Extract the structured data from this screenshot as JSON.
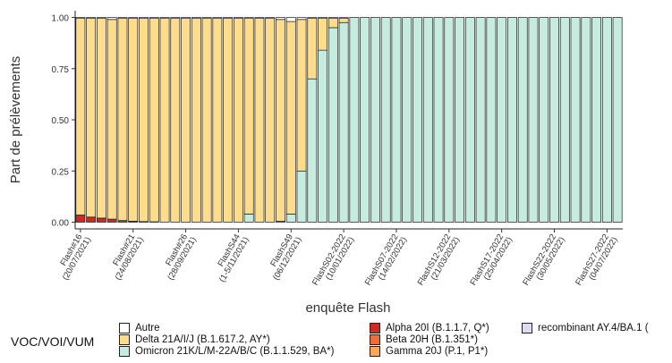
{
  "chart_data": {
    "type": "bar",
    "stacked": true,
    "title": "",
    "xlabel": "enquête Flash",
    "ylabel": "Part de prélèvements",
    "ylim": [
      0,
      1
    ],
    "y_ticks": [
      "0.00",
      "0.25",
      "0.50",
      "0.75",
      "1.00"
    ],
    "y_tick_values": [
      0,
      0.25,
      0.5,
      0.75,
      1
    ],
    "x_tick_labels": [
      {
        "index": 0,
        "line1": "Flash#16",
        "line2": "(20/07/2021)"
      },
      {
        "index": 5,
        "line1": "Flash#21",
        "line2": "(24/08/2021)"
      },
      {
        "index": 10,
        "line1": "Flash#26",
        "line2": "(28/09/2021)"
      },
      {
        "index": 15,
        "line1": "FlashS44",
        "line2": "(1-5/11/2021)"
      },
      {
        "index": 20,
        "line1": "FlashS49",
        "line2": "(06/12/2021)"
      },
      {
        "index": 25,
        "line1": "FlashS02-2022",
        "line2": "(10/01/2022)"
      },
      {
        "index": 30,
        "line1": "FlashS07-2022",
        "line2": "(14/02/2022)"
      },
      {
        "index": 35,
        "line1": "FlashS12-2022",
        "line2": "(21/03/2022)"
      },
      {
        "index": 40,
        "line1": "FlashS17-2022",
        "line2": "(25/04/2022)"
      },
      {
        "index": 45,
        "line1": "FlashS22-2022",
        "line2": "(30/05/2022)"
      },
      {
        "index": 50,
        "line1": "FlashS27-2022",
        "line2": "(04/07/2022)"
      }
    ],
    "n_bars": 52,
    "grid": false,
    "legend_position": "bottom",
    "legend_title": "VOC/VOI/VUM",
    "series": [
      {
        "name": "Alpha 20I (B.1.1.7, Q*)",
        "color": "#d7261e",
        "values": [
          0.035,
          0.025,
          0.02,
          0.015,
          0.008,
          0.005,
          0.003,
          0.002,
          0,
          0,
          0,
          0,
          0,
          0,
          0,
          0,
          0,
          0,
          0,
          0,
          0,
          0,
          0,
          0,
          0,
          0,
          0,
          0,
          0,
          0,
          0,
          0,
          0,
          0,
          0,
          0,
          0,
          0,
          0,
          0,
          0,
          0,
          0,
          0,
          0,
          0,
          0,
          0,
          0,
          0,
          0,
          0
        ]
      },
      {
        "name": "Beta 20H (B.1.351*)",
        "color": "#f26b3a",
        "values": [
          0,
          0,
          0,
          0,
          0,
          0,
          0,
          0,
          0,
          0,
          0,
          0,
          0,
          0,
          0,
          0,
          0,
          0,
          0,
          0,
          0,
          0,
          0,
          0,
          0,
          0,
          0,
          0,
          0,
          0,
          0,
          0,
          0,
          0,
          0,
          0,
          0,
          0,
          0,
          0,
          0,
          0,
          0,
          0,
          0,
          0,
          0,
          0,
          0,
          0,
          0,
          0
        ]
      },
      {
        "name": "Gamma 20J (P.1, P1*)",
        "color": "#f9a65a",
        "values": [
          0,
          0,
          0,
          0,
          0,
          0,
          0,
          0,
          0,
          0,
          0,
          0,
          0,
          0,
          0,
          0,
          0,
          0,
          0,
          0,
          0,
          0,
          0,
          0,
          0,
          0,
          0,
          0,
          0,
          0,
          0,
          0,
          0,
          0,
          0,
          0,
          0,
          0,
          0,
          0,
          0,
          0,
          0,
          0,
          0,
          0,
          0,
          0,
          0,
          0,
          0,
          0
        ]
      },
      {
        "name": "Omicron 21K/L/M-22A/B/C (B.1.1.529, BA*)",
        "color": "#c6ecdf",
        "values": [
          0,
          0,
          0,
          0,
          0,
          0,
          0,
          0,
          0,
          0,
          0,
          0,
          0,
          0,
          0,
          0,
          0,
          0,
          0,
          0,
          0,
          0,
          0,
          0,
          0,
          0,
          0,
          0,
          0,
          0,
          0,
          0,
          0,
          0,
          0,
          0,
          0,
          0,
          0,
          0,
          0,
          0,
          0,
          0,
          0,
          0,
          0,
          0,
          0,
          0,
          0,
          0
        ]
      },
      {
        "name": "Delta 21A/I/J (B.1.617.2, AY*)",
        "color": "#fddc8c",
        "values": []
      },
      {
        "name": "recombinant AY.4/BA.1 (",
        "color": "#dcdcee",
        "values": [
          0,
          0,
          0,
          0,
          0,
          0,
          0,
          0,
          0,
          0,
          0,
          0,
          0,
          0,
          0,
          0,
          0,
          0,
          0,
          0,
          0,
          0,
          0,
          0,
          0,
          0,
          0,
          0,
          0,
          0,
          0,
          0,
          0,
          0,
          0,
          0,
          0,
          0,
          0,
          0,
          0,
          0,
          0,
          0,
          0,
          0,
          0,
          0,
          0,
          0,
          0,
          0
        ]
      },
      {
        "name": "Autre",
        "color": "#ffffff",
        "values": [
          0.005,
          0.005,
          0.005,
          0.01,
          0.005,
          0.005,
          0.005,
          0.005,
          0.005,
          0.005,
          0.005,
          0.005,
          0.005,
          0.005,
          0.005,
          0.005,
          0.005,
          0.005,
          0.005,
          0.01,
          0.02,
          0.01,
          0.005,
          0.005,
          0.005,
          0.005,
          0,
          0,
          0,
          0,
          0,
          0,
          0,
          0,
          0,
          0,
          0,
          0,
          0,
          0,
          0,
          0,
          0,
          0,
          0,
          0,
          0,
          0,
          0,
          0,
          0,
          0
        ]
      }
    ],
    "omicron_values": [
      0,
      0,
      0,
      0,
      0,
      0,
      0,
      0,
      0,
      0,
      0,
      0,
      0,
      0,
      0,
      0,
      0.04,
      0,
      0,
      0.005,
      0.04,
      0.25,
      0.7,
      0.84,
      0.95,
      0.975,
      1,
      1,
      1,
      1,
      1,
      1,
      1,
      1,
      1,
      1,
      1,
      1,
      1,
      1,
      1,
      1,
      1,
      1,
      1,
      1,
      1,
      1,
      1,
      1,
      1,
      1
    ]
  },
  "legend": {
    "title": "VOC/VOI/VUM",
    "items": [
      {
        "label": "Autre",
        "color": "#ffffff"
      },
      {
        "label": "Delta 21A/I/J (B.1.617.2, AY*)",
        "color": "#fddc8c"
      },
      {
        "label": "Omicron 21K/L/M-22A/B/C (B.1.1.529, BA*)",
        "color": "#c6ecdf"
      },
      {
        "label": "Alpha 20I (B.1.1.7, Q*)",
        "color": "#d7261e"
      },
      {
        "label": "Beta 20H (B.1.351*)",
        "color": "#f26b3a"
      },
      {
        "label": "Gamma 20J (P.1, P1*)",
        "color": "#f9a65a"
      },
      {
        "label": "recombinant AY.4/BA.1 (",
        "color": "#dcdcee"
      }
    ]
  }
}
